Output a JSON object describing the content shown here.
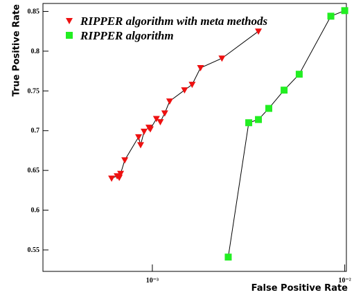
{
  "chart_data": {
    "type": "scatter",
    "xlabel": "False Positive Rate",
    "ylabel": "True Positive Rate",
    "xscale": "log",
    "xlim": [
      0.00027,
      0.0102
    ],
    "ylim": [
      0.523,
      0.86
    ],
    "xticks": [
      {
        "value": 0.001,
        "label": "10⁻³"
      },
      {
        "value": 0.01,
        "label": "10⁻²"
      }
    ],
    "yticks": [
      0.55,
      0.6,
      0.65,
      0.7,
      0.75,
      0.8,
      0.85
    ],
    "legend": "top-left",
    "series": [
      {
        "name": "RIPPER algorithm with meta methods",
        "color": "#ee1111",
        "marker": "triangle-down",
        "x": [
          0.000614,
          0.000656,
          0.000673,
          0.000684,
          0.000719,
          0.000848,
          0.000869,
          0.000906,
          0.00096,
          0.000976,
          0.00105,
          0.0011,
          0.00116,
          0.00123,
          0.00147,
          0.00161,
          0.00178,
          0.0023,
          0.00356
        ],
        "values": [
          0.64,
          0.643,
          0.641,
          0.646,
          0.663,
          0.692,
          0.682,
          0.699,
          0.704,
          0.702,
          0.715,
          0.711,
          0.722,
          0.737,
          0.751,
          0.758,
          0.779,
          0.791,
          0.825
        ]
      },
      {
        "name": "RIPPER algorithm",
        "color": "#22ee22",
        "marker": "square",
        "x": [
          0.00248,
          0.00317,
          0.00356,
          0.00403,
          0.00484,
          0.0058,
          0.00847,
          0.01
        ],
        "values": [
          0.541,
          0.71,
          0.714,
          0.728,
          0.751,
          0.771,
          0.844,
          0.851
        ]
      }
    ]
  }
}
